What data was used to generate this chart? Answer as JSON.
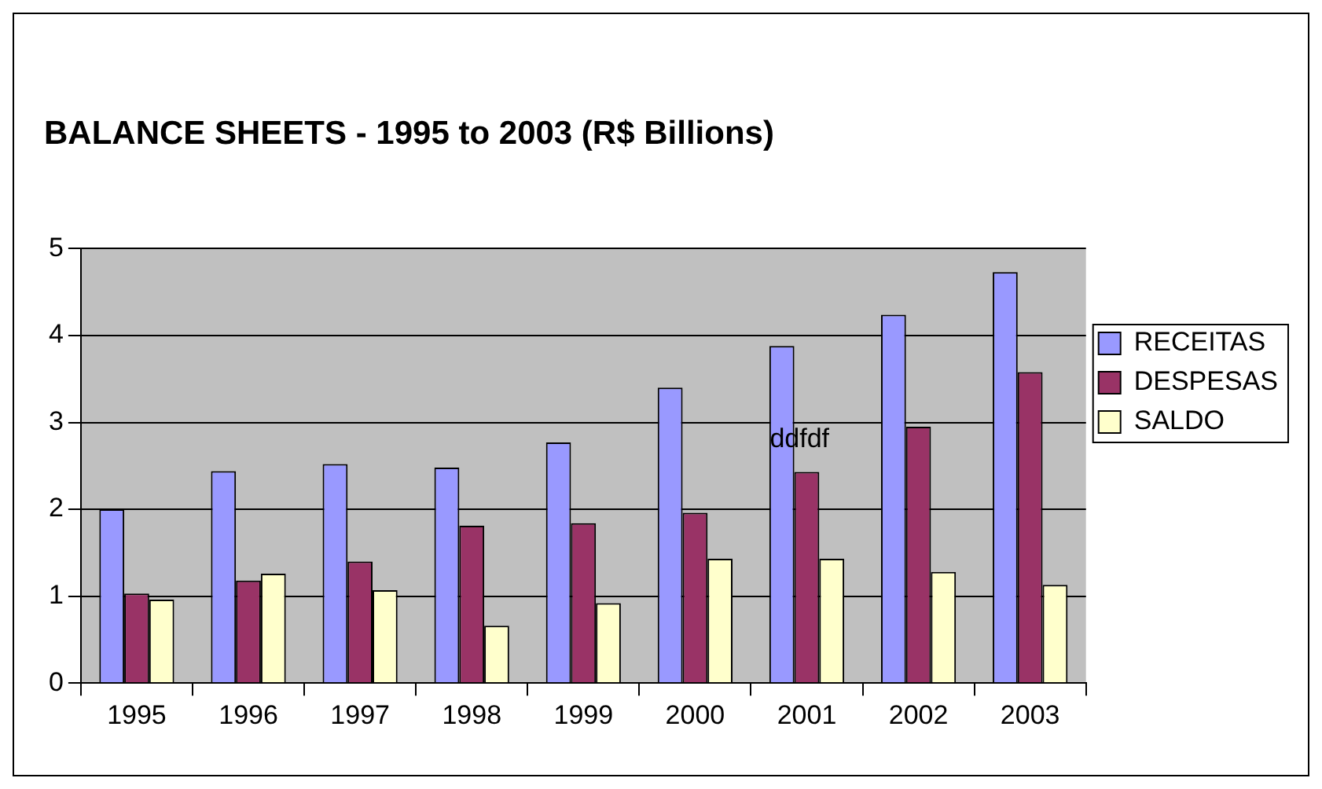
{
  "chart_data": {
    "type": "bar",
    "title": "BALANCE SHEETS - 1995 to 2003 (R$ Billions)",
    "categories": [
      "1995",
      "1996",
      "1997",
      "1998",
      "1999",
      "2000",
      "2001",
      "2002",
      "2003"
    ],
    "series": [
      {
        "name": "RECEITAS",
        "color": "#9999ff",
        "values": [
          2.0,
          2.44,
          2.52,
          2.48,
          2.77,
          3.4,
          3.88,
          4.24,
          4.73
        ]
      },
      {
        "name": "DESPESAS",
        "color": "#993366",
        "values": [
          1.03,
          1.18,
          1.4,
          1.81,
          1.84,
          1.96,
          2.43,
          2.95,
          3.58
        ]
      },
      {
        "name": "SALDO",
        "color": "#ffffcc",
        "values": [
          0.96,
          1.26,
          1.07,
          0.66,
          0.92,
          1.43,
          1.43,
          1.28,
          1.13
        ]
      }
    ],
    "ylim": [
      0,
      5
    ],
    "yticks": [
      0,
      1,
      2,
      3,
      4,
      5
    ],
    "grid": "y",
    "legend": "right",
    "annotations": [
      "ddfdf"
    ]
  }
}
